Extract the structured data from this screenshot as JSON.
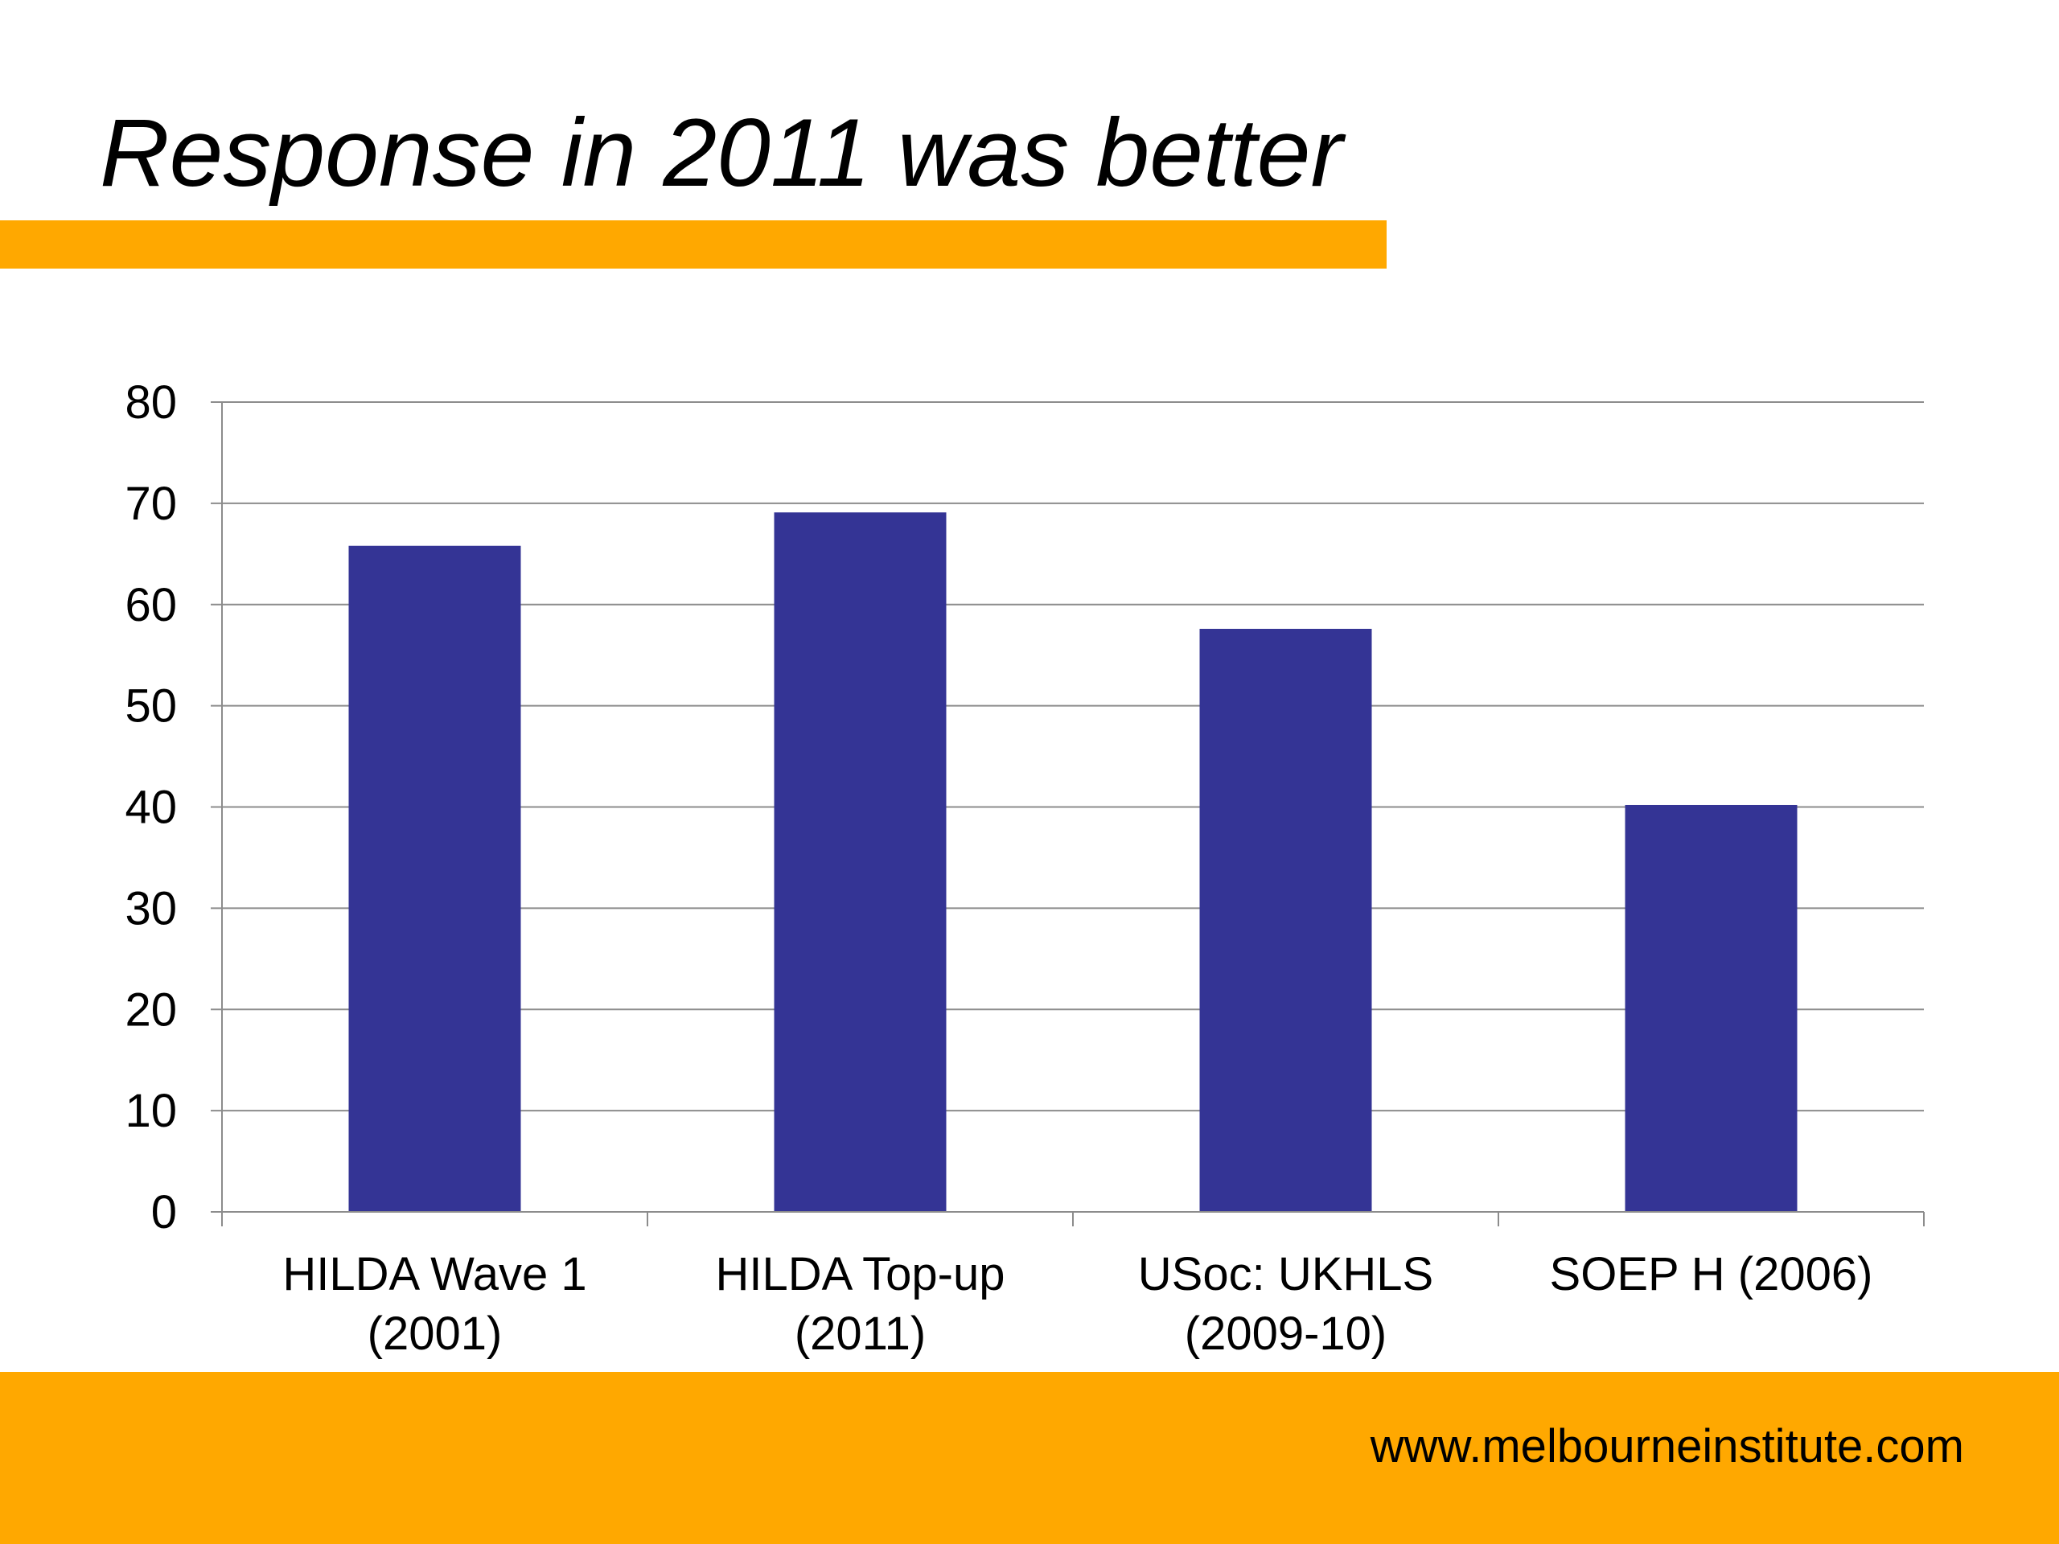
{
  "slide": {
    "title": "Response in 2011 was better",
    "footer_url": "www.melbourneinstitute.com",
    "accent_color": "#FFA800"
  },
  "chart_data": {
    "type": "bar",
    "title": "",
    "xlabel": "",
    "ylabel": "",
    "categories": [
      [
        "HILDA Wave 1",
        "(2001)"
      ],
      [
        "HILDA Top-up",
        "(2011)"
      ],
      [
        "USoc: UKHLS",
        "(2009-10)"
      ],
      [
        "SOEP H (2006)"
      ]
    ],
    "values": [
      65.8,
      69.1,
      57.6,
      40.2
    ],
    "ylim": [
      0,
      80
    ],
    "yticks": [
      0,
      10,
      20,
      30,
      40,
      50,
      60,
      70,
      80
    ],
    "grid": true,
    "legend": "none",
    "bar_color": "#343495"
  }
}
